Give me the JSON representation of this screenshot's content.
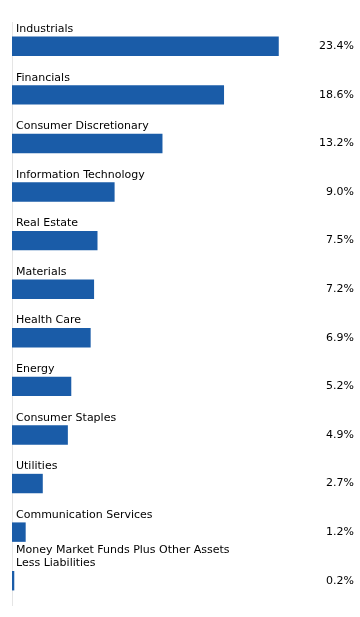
{
  "chart_data": {
    "type": "bar",
    "orientation": "horizontal",
    "categories": [
      "Industrials",
      "Financials",
      "Consumer Discretionary",
      "Information Technology",
      "Real Estate",
      "Materials",
      "Health Care",
      "Energy",
      "Consumer Staples",
      "Utilities",
      "Communication Services",
      "Money Market Funds Plus Other Assets\nLess Liabilities"
    ],
    "values": [
      23.4,
      18.6,
      13.2,
      9.0,
      7.5,
      7.2,
      6.9,
      5.2,
      4.9,
      2.7,
      1.2,
      0.2
    ],
    "value_labels": [
      "23.4%",
      "18.6%",
      "13.2%",
      "9.0%",
      "7.5%",
      "7.2%",
      "6.9%",
      "5.2%",
      "4.9%",
      "2.7%",
      "1.2%",
      "0.2%"
    ],
    "data_labels": true,
    "color": "#1A5CA8",
    "xlim": [
      0,
      30
    ],
    "grid": false,
    "tick_labels": false
  }
}
